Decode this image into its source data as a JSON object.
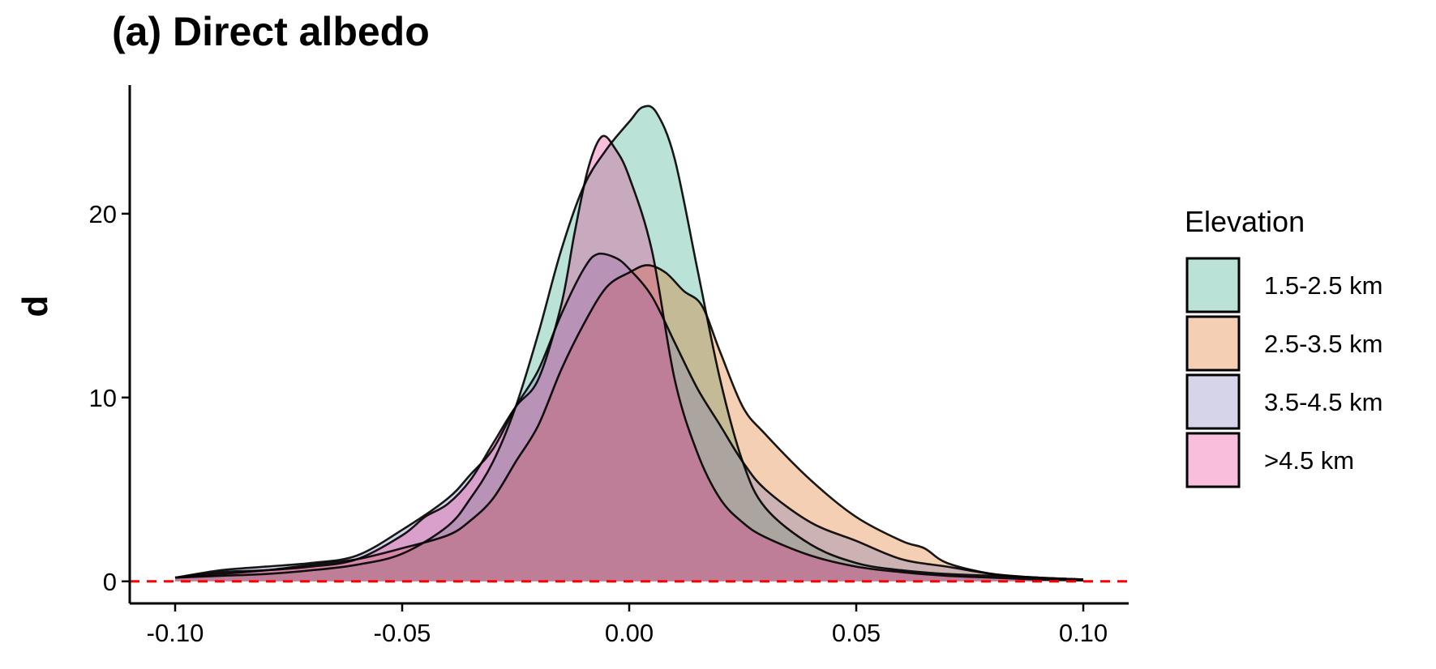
{
  "chart_data": {
    "type": "area",
    "title": "(a) Direct albedo",
    "xlabel": "",
    "ylabel": "d",
    "xlim": [
      -0.11,
      0.11
    ],
    "ylim": [
      -1.2,
      27
    ],
    "x_ticks": [
      -0.1,
      -0.05,
      0.0,
      0.05,
      0.1
    ],
    "x_tick_labels": [
      "-0.10",
      "-0.05",
      "0.00",
      "0.05",
      "0.10"
    ],
    "y_ticks": [
      0,
      10,
      20
    ],
    "y_tick_labels": [
      "0",
      "10",
      "20"
    ],
    "grid": false,
    "reference_line": {
      "y": 0,
      "color": "#ff0000",
      "style": "dashed"
    },
    "legend": {
      "title": "Elevation",
      "placement": "right"
    },
    "series": [
      {
        "name": "1.5-2.5 km",
        "color": "#1b9e77",
        "x": [
          -0.1,
          -0.09,
          -0.08,
          -0.07,
          -0.06,
          -0.05,
          -0.04,
          -0.035,
          -0.03,
          -0.025,
          -0.02,
          -0.015,
          -0.01,
          -0.005,
          0.0,
          0.003,
          0.006,
          0.01,
          0.015,
          0.02,
          0.025,
          0.03,
          0.04,
          0.05,
          0.06,
          0.07,
          0.08,
          0.09,
          0.1
        ],
        "y": [
          0.2,
          0.3,
          0.4,
          0.6,
          0.9,
          1.5,
          3.0,
          4.5,
          6.5,
          9.5,
          13.5,
          18.0,
          21.5,
          23.5,
          25.0,
          25.8,
          25.5,
          23.0,
          17.0,
          11.0,
          6.5,
          4.0,
          2.0,
          1.0,
          0.6,
          0.4,
          0.3,
          0.2,
          0.1
        ]
      },
      {
        "name": "2.5-3.5 km",
        "color": "#d95f02",
        "x": [
          -0.1,
          -0.09,
          -0.08,
          -0.07,
          -0.06,
          -0.05,
          -0.04,
          -0.035,
          -0.03,
          -0.025,
          -0.02,
          -0.015,
          -0.01,
          -0.005,
          0.0,
          0.004,
          0.008,
          0.012,
          0.016,
          0.02,
          0.025,
          0.03,
          0.04,
          0.05,
          0.06,
          0.065,
          0.07,
          0.08,
          0.09,
          0.1
        ],
        "y": [
          0.2,
          0.4,
          0.6,
          0.9,
          1.2,
          1.8,
          2.5,
          3.3,
          4.5,
          6.5,
          8.5,
          11.5,
          14.0,
          16.0,
          16.8,
          17.2,
          16.8,
          15.8,
          15.0,
          12.5,
          9.5,
          8.0,
          5.5,
          3.5,
          2.2,
          1.8,
          1.0,
          0.4,
          0.2,
          0.1
        ]
      },
      {
        "name": "3.5-4.5 km",
        "color": "#7570b3",
        "x": [
          -0.1,
          -0.09,
          -0.08,
          -0.07,
          -0.06,
          -0.05,
          -0.04,
          -0.035,
          -0.03,
          -0.025,
          -0.02,
          -0.015,
          -0.01,
          -0.007,
          -0.003,
          0.0,
          0.005,
          0.01,
          0.015,
          0.02,
          0.025,
          0.03,
          0.04,
          0.05,
          0.06,
          0.07,
          0.08,
          0.09,
          0.1
        ],
        "y": [
          0.2,
          0.6,
          0.8,
          1.0,
          1.4,
          2.8,
          4.5,
          5.8,
          7.2,
          9.5,
          11.5,
          14.5,
          17.0,
          17.8,
          17.6,
          17.0,
          15.5,
          13.0,
          10.5,
          8.5,
          6.5,
          5.0,
          3.2,
          2.2,
          1.2,
          0.8,
          0.4,
          0.2,
          0.1
        ]
      },
      {
        "name": ">4.5 km",
        "color": "#e7298a",
        "x": [
          -0.1,
          -0.09,
          -0.08,
          -0.07,
          -0.06,
          -0.05,
          -0.045,
          -0.04,
          -0.035,
          -0.03,
          -0.025,
          -0.02,
          -0.015,
          -0.012,
          -0.009,
          -0.006,
          -0.003,
          0.0,
          0.005,
          0.01,
          0.015,
          0.02,
          0.025,
          0.03,
          0.04,
          0.05,
          0.06,
          0.07,
          0.08,
          0.09,
          0.1
        ],
        "y": [
          0.2,
          0.5,
          0.6,
          0.8,
          1.2,
          2.5,
          3.5,
          4.2,
          5.5,
          7.5,
          9.5,
          11.0,
          15.0,
          19.0,
          22.5,
          24.2,
          23.5,
          22.0,
          18.0,
          11.0,
          7.0,
          4.5,
          3.2,
          2.4,
          1.4,
          0.8,
          0.5,
          0.3,
          0.2,
          0.1,
          0.05
        ]
      }
    ]
  }
}
